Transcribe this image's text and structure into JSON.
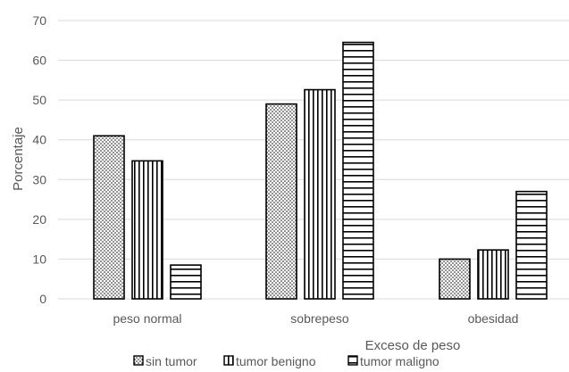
{
  "chart_data": {
    "type": "bar",
    "categories": [
      "peso normal",
      "sobrepeso",
      "obesidad"
    ],
    "series": [
      {
        "name": "sin tumor",
        "values": [
          41,
          49,
          10
        ],
        "pattern": "dots"
      },
      {
        "name": "tumor benigno",
        "values": [
          34.7,
          52.6,
          12.3
        ],
        "pattern": "vertical"
      },
      {
        "name": "tumor maligno",
        "values": [
          8.5,
          64.5,
          27
        ],
        "pattern": "horizontal"
      }
    ],
    "xlabel": "Exceso de peso",
    "ylabel": "Porcentaje",
    "ylim": [
      0,
      70
    ],
    "yticks": [
      0,
      10,
      20,
      30,
      40,
      50,
      60,
      70
    ],
    "grid": true,
    "legend_position": "bottom",
    "colors": {
      "grid": "#d9d9d9",
      "bar_stroke": "#000000",
      "text": "#595959"
    }
  }
}
